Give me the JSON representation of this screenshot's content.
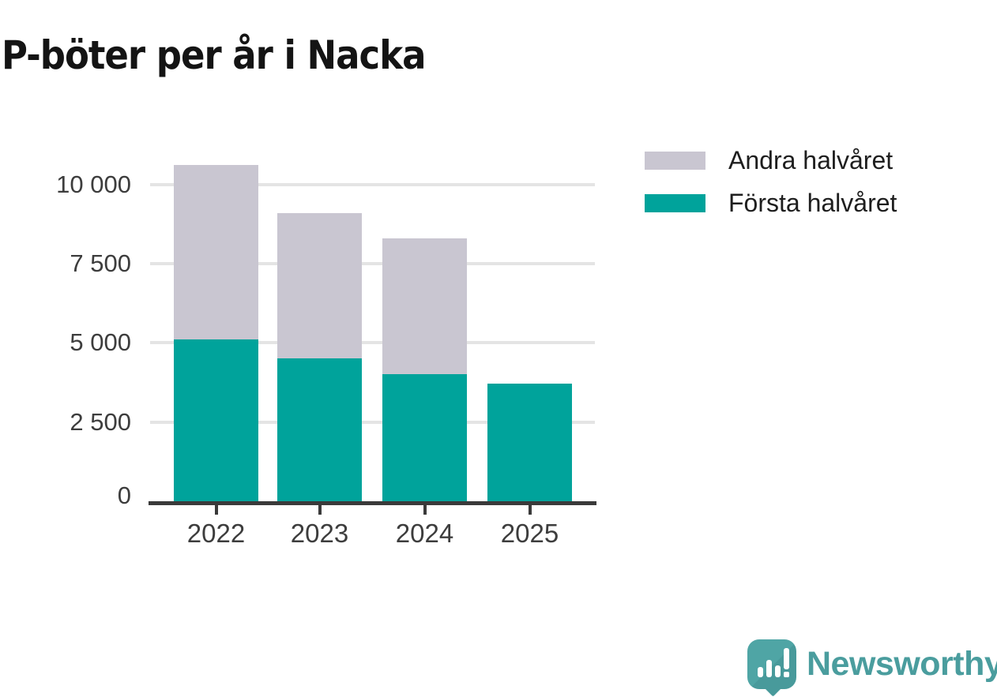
{
  "title": "P-böter per år i Nacka",
  "chart_data": {
    "type": "bar",
    "stacked": true,
    "title": "P-böter per år i Nacka",
    "categories": [
      "2022",
      "2023",
      "2024",
      "2025"
    ],
    "series": [
      {
        "name": "Första halvåret",
        "color": "#00a39b",
        "values": [
          5100,
          4500,
          4000,
          3700
        ]
      },
      {
        "name": "Andra halvåret",
        "color": "#c9c6d1",
        "values": [
          5500,
          4600,
          4300,
          0
        ]
      }
    ],
    "totals": [
      10600,
      9100,
      8300,
      3700
    ],
    "xlabel": "",
    "ylabel": "",
    "ylim": [
      0,
      10600
    ],
    "yticks": [
      0,
      2500,
      5000,
      7500,
      10000
    ],
    "ytick_labels": [
      "0",
      "2 500",
      "5 000",
      "7 500",
      "10 000"
    ],
    "grid": "horizontal",
    "legend_position": "top-right"
  },
  "legend": {
    "items": [
      {
        "label": "Andra halvåret",
        "color": "#c9c6d1"
      },
      {
        "label": "Första halvåret",
        "color": "#00a39b"
      }
    ]
  },
  "branding": {
    "name": "Newsworthy",
    "color": "#4a9d9e"
  }
}
